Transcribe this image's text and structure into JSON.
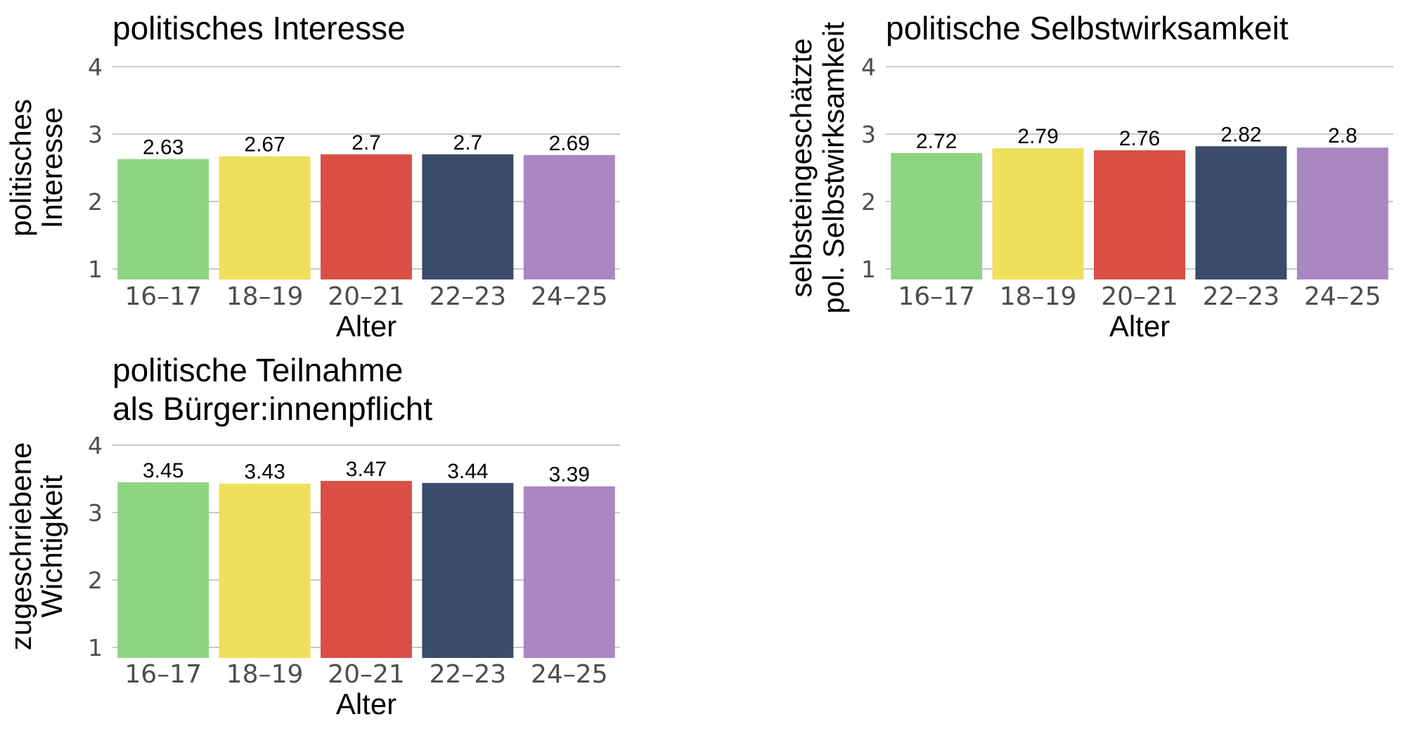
{
  "chart_data": [
    {
      "type": "bar",
      "title": [
        "politisches Interesse"
      ],
      "ylabel": [
        "politisches",
        "Interesse"
      ],
      "xlabel": "Alter",
      "categories": [
        "16–17",
        "18–19",
        "20–21",
        "22–23",
        "24–25"
      ],
      "values": [
        2.63,
        2.67,
        2.7,
        2.7,
        2.69
      ],
      "value_labels": [
        "2.63",
        "2.67",
        "2.7",
        "2.7",
        "2.69"
      ],
      "ylim": [
        1,
        4
      ],
      "yticks": [
        "1",
        "2",
        "3",
        "4"
      ],
      "grid": true,
      "legend": "none"
    },
    {
      "type": "bar",
      "title": [
        "politische Selbstwirksamkeit"
      ],
      "ylabel": [
        "selbsteingeschätzte",
        "pol. Selbstwirksamkeit"
      ],
      "xlabel": "Alter",
      "categories": [
        "16–17",
        "18–19",
        "20–21",
        "22–23",
        "24–25"
      ],
      "values": [
        2.72,
        2.79,
        2.76,
        2.82,
        2.8
      ],
      "value_labels": [
        "2.72",
        "2.79",
        "2.76",
        "2.82",
        "2.8"
      ],
      "ylim": [
        1,
        4
      ],
      "yticks": [
        "1",
        "2",
        "3",
        "4"
      ],
      "grid": true,
      "legend": "none"
    },
    {
      "type": "bar",
      "title": [
        "politische Teilnahme",
        "als Bürger:innenpflicht"
      ],
      "ylabel": [
        "zugeschriebene",
        "Wichtigkeit"
      ],
      "xlabel": "Alter",
      "categories": [
        "16–17",
        "18–19",
        "20–21",
        "22–23",
        "24–25"
      ],
      "values": [
        3.45,
        3.43,
        3.47,
        3.44,
        3.39
      ],
      "value_labels": [
        "3.45",
        "3.43",
        "3.47",
        "3.44",
        "3.39"
      ],
      "ylim": [
        1,
        4
      ],
      "yticks": [
        "1",
        "2",
        "3",
        "4"
      ],
      "grid": true,
      "legend": "none"
    }
  ],
  "colors": {
    "bars": [
      "#8fd482",
      "#f0df5a",
      "#d94f45",
      "#3b4b6b",
      "#aa87c3"
    ],
    "grid": "#c8c8c8",
    "tick_text": "#4d4d4d",
    "text": "#000000"
  }
}
